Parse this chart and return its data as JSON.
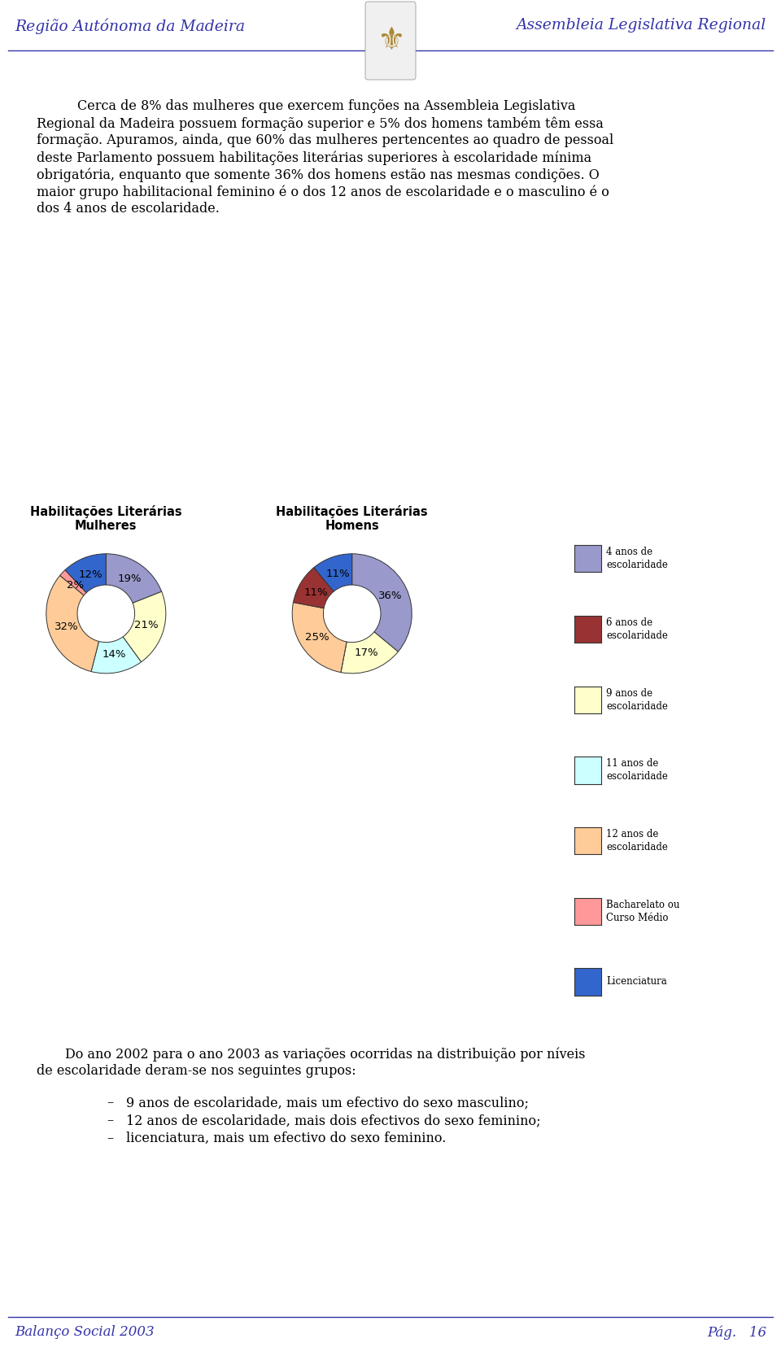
{
  "title_left": "Região Autónoma da Madeira",
  "title_right": "Assembleia Legislativa Regional",
  "chart1_title_line1": "Habilitações Literárias",
  "chart1_title_line2": "Mulheres",
  "chart2_title_line1": "Habilitações Literárias",
  "chart2_title_line2": "Homens",
  "mulheres_values": [
    19,
    21,
    14,
    32,
    2,
    12
  ],
  "mulheres_labels": [
    "19%",
    "21%",
    "14%",
    "32%",
    "2%",
    "12%"
  ],
  "mulheres_colors": [
    "#9999CC",
    "#FFFFCC",
    "#CCFFFF",
    "#FFCC99",
    "#FF9999",
    "#3366CC"
  ],
  "homens_values": [
    36,
    17,
    0,
    25,
    11,
    11
  ],
  "homens_labels": [
    "36%",
    "17%",
    "",
    "25%",
    "11%",
    "11%"
  ],
  "homens_colors": [
    "#9999CC",
    "#FFFFCC",
    "#CCFFFF",
    "#FFCC99",
    "#993333",
    "#3366CC"
  ],
  "legend_labels": [
    "4 anos de\nescolaridade",
    "6 anos de\nescolaridade",
    "9 anos de\nescolaridade",
    "11 anos de\nescolaridade",
    "12 anos de\nescolaridade",
    "Bacharelato ou\nCurso Médio",
    "Licenciatura"
  ],
  "legend_colors": [
    "#9999CC",
    "#993333",
    "#FFFFCC",
    "#CCFFFF",
    "#FFCC99",
    "#FF9999",
    "#3366CC"
  ],
  "p1_lines": [
    "Cerca de 8% das mulheres que exercem funções na Assembleia Legislativa",
    "Regional da Madeira possuem formação superior e 5% dos homens também têm essa",
    "formação. Apuramos, ainda, que 60% das mulheres pertencentes ao quadro de pessoal",
    "deste Parlamento possuem habilitações literárias superiores à escolaridade mínima",
    "obrigatória, enquanto que somente 36% dos homens estão nas mesmas condições. O",
    "maior grupo habilitacional feminino é o dos 12 anos de escolaridade e o masculino é o",
    "dos 4 anos de escolaridade."
  ],
  "p2_lines": [
    "Do ano 2002 para o ano 2003 as variações ocorridas na distribuição por níveis",
    "de escolaridade deram-se nos seguintes grupos:"
  ],
  "bullets": [
    "9 anos de escolaridade, mais um efectivo do sexo masculino;",
    "12 anos de escolaridade, mais dois efectivos do sexo feminino;",
    "licenciatura, mais um efectivo do sexo feminino."
  ],
  "footer_left": "Balanço Social 2003",
  "footer_right": "Pág.   16",
  "bg_color": "#FFFFFF",
  "header_color": "#3333AA",
  "text_color": "#000000"
}
